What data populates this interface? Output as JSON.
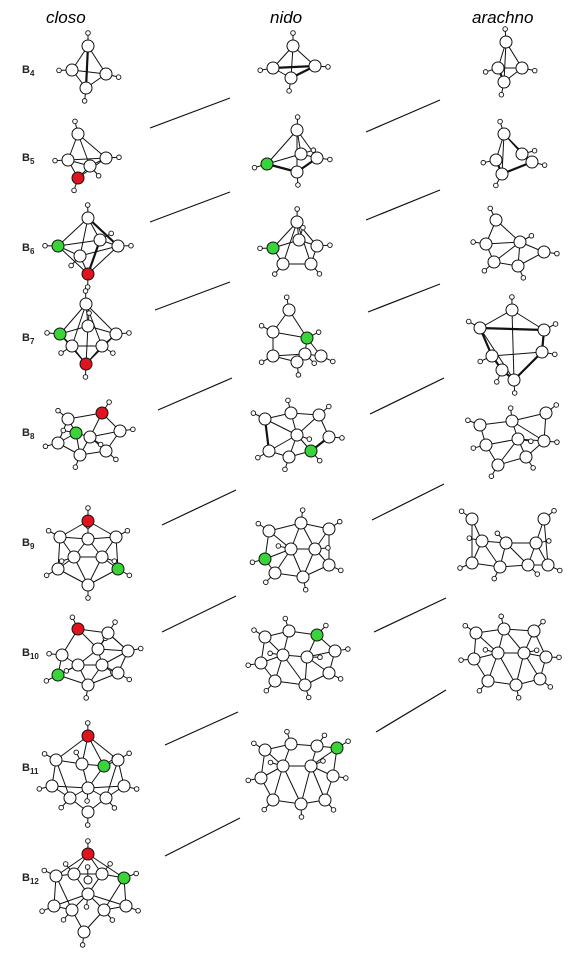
{
  "headers": {
    "closo": "closo",
    "nido": "nido",
    "arachno": "arachno"
  },
  "rows": [
    {
      "base": "B",
      "sub": "4"
    },
    {
      "base": "B",
      "sub": "5"
    },
    {
      "base": "B",
      "sub": "6"
    },
    {
      "base": "B",
      "sub": "7"
    },
    {
      "base": "B",
      "sub": "8"
    },
    {
      "base": "B",
      "sub": "9"
    },
    {
      "base": "B",
      "sub": "10"
    },
    {
      "base": "B",
      "sub": "11"
    },
    {
      "base": "B",
      "sub": "12"
    }
  ],
  "colors": {
    "removed_vertex": "#e0141e",
    "second_removed_vertex": "#39d33a",
    "atom_fill": "#ffffff",
    "stroke": "#111111"
  },
  "structures": {
    "closo": [
      "B4",
      "B5",
      "B6",
      "B7",
      "B8",
      "B9",
      "B10",
      "B11",
      "B12"
    ],
    "nido": [
      "B4",
      "B5",
      "B6",
      "B7",
      "B8",
      "B9",
      "B10",
      "B11"
    ],
    "arachno": [
      "B4",
      "B5",
      "B6",
      "B7",
      "B8",
      "B9",
      "B10"
    ]
  }
}
